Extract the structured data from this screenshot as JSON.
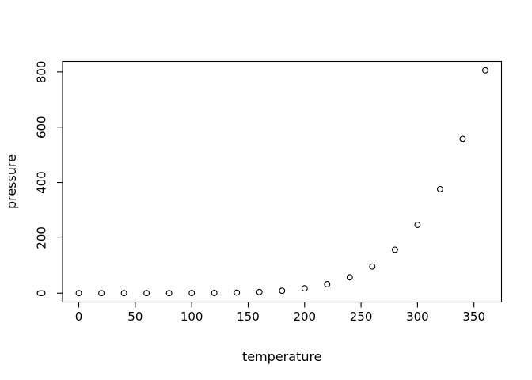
{
  "figure": {
    "background": "#ffffff",
    "axis_color": "#000000",
    "marker_color": "#000000"
  },
  "chart_data": {
    "type": "scatter",
    "title": "",
    "xlabel": "temperature",
    "ylabel": "pressure",
    "marker": "open-circle",
    "grid": false,
    "legend": null,
    "x": [
      0,
      20,
      40,
      60,
      80,
      100,
      120,
      140,
      160,
      180,
      200,
      220,
      240,
      260,
      280,
      300,
      320,
      340,
      360
    ],
    "y": [
      0.0002,
      0.0012,
      0.006,
      0.03,
      0.09,
      0.27,
      0.75,
      1.85,
      4.2,
      8.8,
      17.3,
      32.1,
      57,
      96,
      157,
      247,
      376,
      558,
      806
    ],
    "xticks": [
      0,
      50,
      100,
      150,
      200,
      250,
      300,
      350
    ],
    "yticks": [
      0,
      200,
      400,
      600,
      800
    ],
    "xlim": [
      -14.4,
      374.4
    ],
    "ylim": [
      -32.25,
      838.25
    ]
  }
}
